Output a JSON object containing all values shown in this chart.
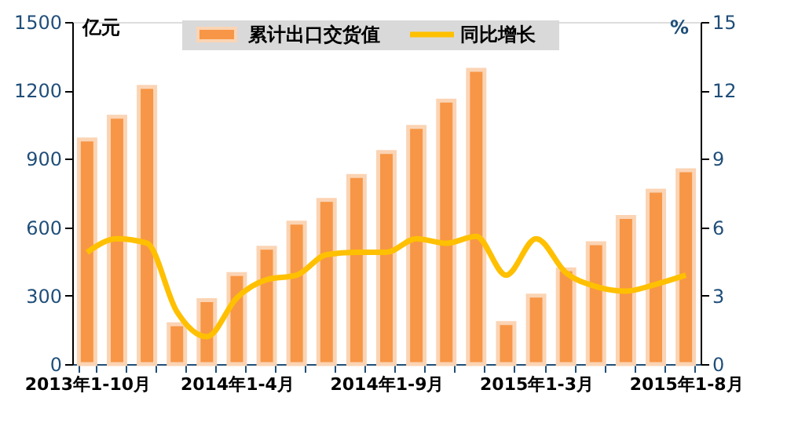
{
  "chart_data": {
    "type": "bar",
    "categories": [
      "2013年1-10月",
      null,
      null,
      null,
      null,
      "2014年1-4月",
      null,
      null,
      null,
      null,
      "2014年1-9月",
      null,
      null,
      null,
      null,
      "2015年1-3月",
      null,
      null,
      null,
      null,
      "2015年1-8月"
    ],
    "ylabel": "亿元",
    "y2label": "%",
    "ylim": [
      0,
      1500
    ],
    "yticks": [
      0,
      300,
      600,
      900,
      1200,
      1500
    ],
    "y2lim": [
      0,
      15
    ],
    "y2ticks": [
      0,
      3,
      6,
      9,
      12,
      15
    ],
    "series": [
      {
        "name": "累计出口交货值",
        "color": "#f79646",
        "values": [
          985,
          1085,
          1215,
          175,
          280,
          395,
          510,
          620,
          720,
          825,
          930,
          1040,
          1155,
          1290,
          180,
          300,
          415,
          530,
          645,
          760,
          850
        ]
      },
      {
        "name": "同比增长",
        "type": "line",
        "axis": "y2",
        "color": "#ffc000",
        "values": [
          4.9,
          5.5,
          5.3,
          2.3,
          1.2,
          2.9,
          3.7,
          3.9,
          4.8,
          4.9,
          4.9,
          5.5,
          5.3,
          5.6,
          3.9,
          5.5,
          4.0,
          3.4,
          3.2,
          3.5,
          3.9
        ]
      }
    ],
    "legend": "top",
    "grid": false,
    "marker": "none"
  }
}
